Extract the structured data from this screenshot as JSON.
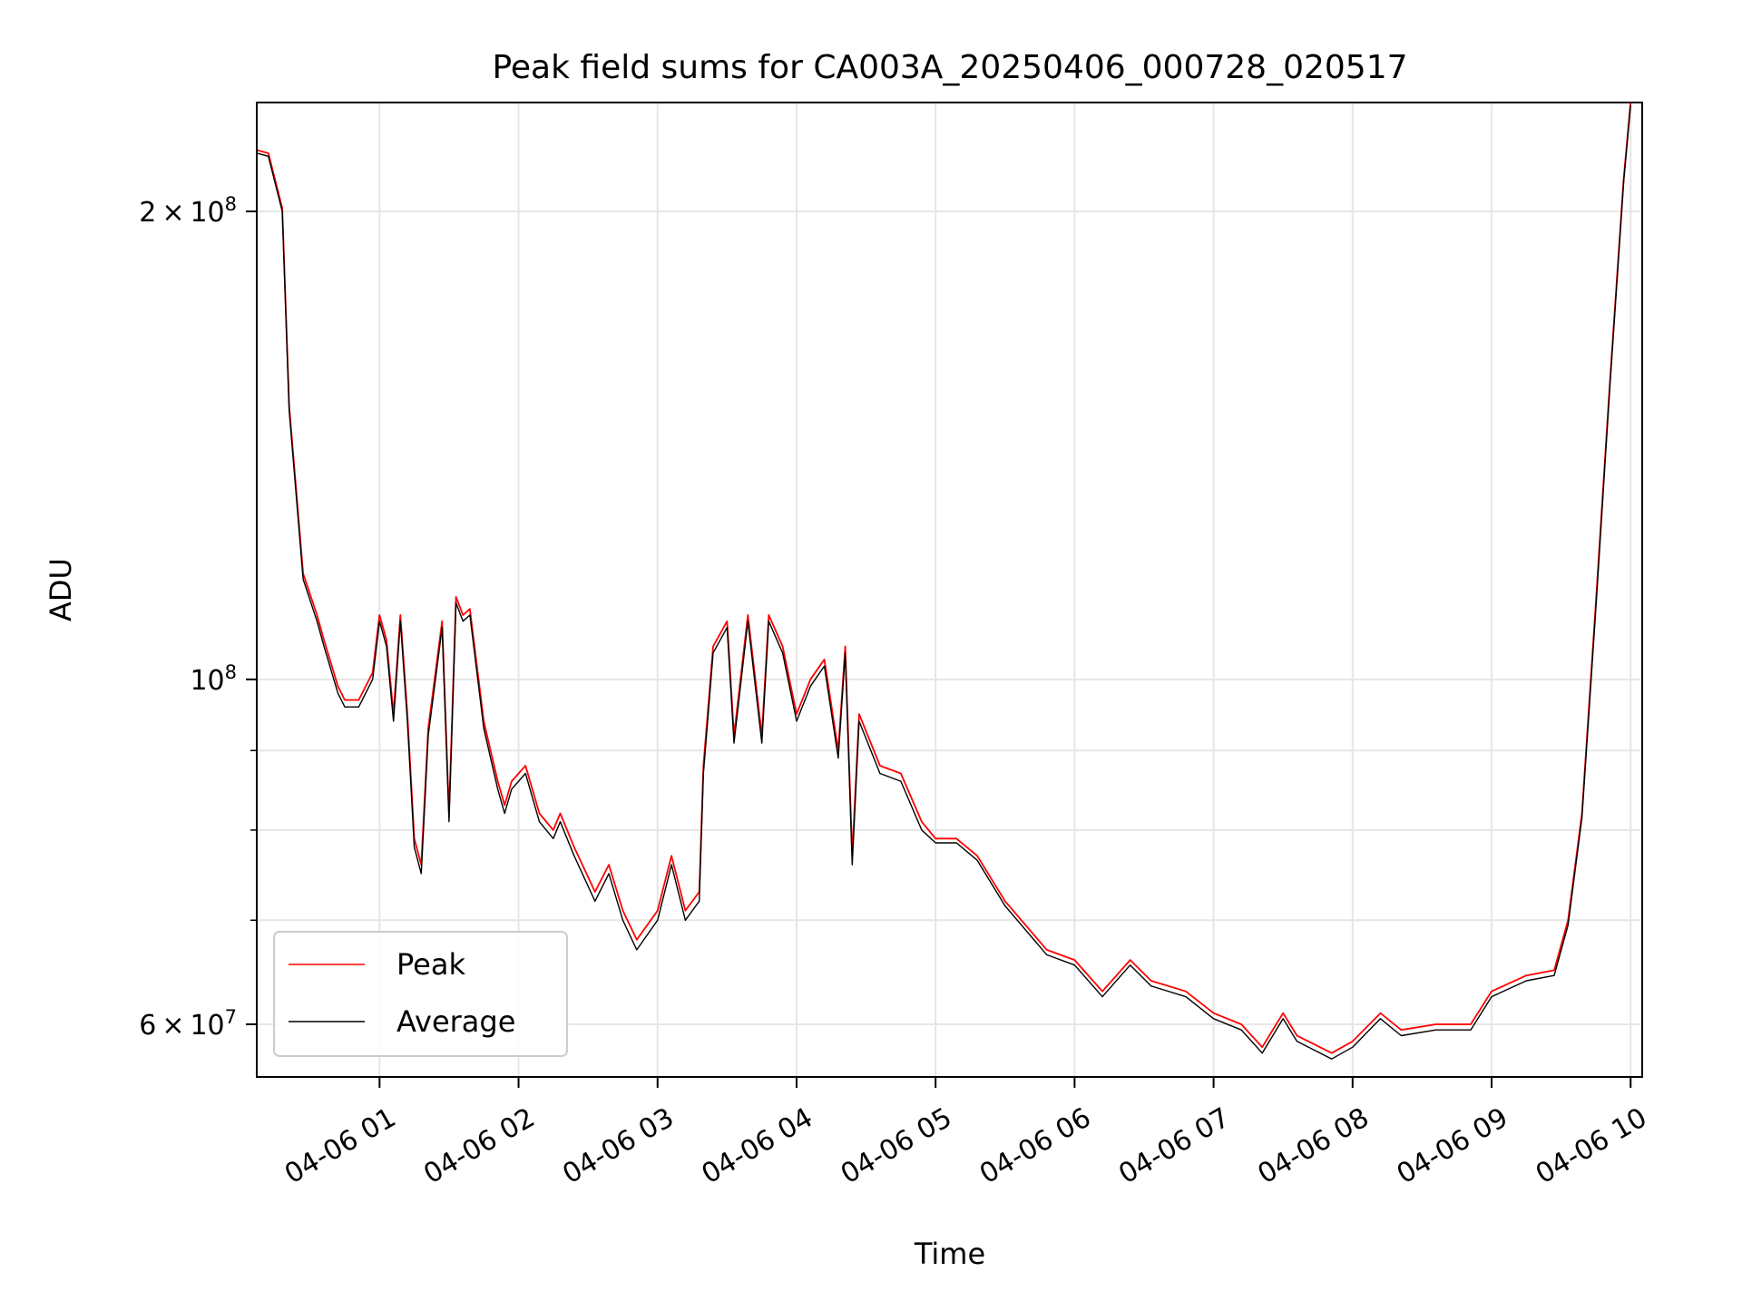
{
  "chart_data": {
    "type": "line",
    "title": "Peak field sums for CA003A_20250406_000728_020517",
    "xlabel": "Time",
    "ylabel": "ADU",
    "xlim": [
      "04-06 00:07",
      "04-06 10:05"
    ],
    "ylim": [
      55500000,
      235000000
    ],
    "yscale": "log",
    "grid": true,
    "legend_position": "lower-left",
    "x_ticks": [
      "04-06 01",
      "04-06 02",
      "04-06 03",
      "04-06 04",
      "04-06 05",
      "04-06 06",
      "04-06 07",
      "04-06 08",
      "04-06 09",
      "04-06 10"
    ],
    "y_ticks": [
      {
        "value": 60000000,
        "mantissa": "6",
        "exponent": "7"
      },
      {
        "value": 100000000,
        "mantissa": "",
        "exponent": "8"
      },
      {
        "value": 200000000,
        "mantissa": "2",
        "exponent": "8"
      }
    ],
    "y_minor_ticks": [
      70000000,
      80000000,
      90000000
    ],
    "x_hours": [
      0.12,
      0.2,
      0.3,
      0.35,
      0.45,
      0.55,
      0.6,
      0.7,
      0.75,
      0.85,
      0.95,
      1.0,
      1.05,
      1.1,
      1.15,
      1.2,
      1.25,
      1.3,
      1.35,
      1.45,
      1.5,
      1.55,
      1.6,
      1.65,
      1.75,
      1.85,
      1.9,
      1.95,
      2.05,
      2.15,
      2.25,
      2.3,
      2.4,
      2.55,
      2.65,
      2.75,
      2.85,
      3.0,
      3.1,
      3.2,
      3.3,
      3.33,
      3.4,
      3.5,
      3.55,
      3.65,
      3.75,
      3.8,
      3.9,
      4.0,
      4.1,
      4.2,
      4.3,
      4.35,
      4.4,
      4.45,
      4.6,
      4.75,
      4.9,
      5.0,
      5.15,
      5.3,
      5.5,
      5.8,
      6.0,
      6.2,
      6.4,
      6.55,
      6.8,
      7.0,
      7.2,
      7.35,
      7.5,
      7.6,
      7.85,
      8.0,
      8.2,
      8.35,
      8.6,
      8.85,
      9.0,
      9.25,
      9.45,
      9.55,
      9.65,
      9.75,
      9.85,
      9.95,
      10.0
    ],
    "series": [
      {
        "name": "Peak",
        "color": "#ff0000",
        "values": [
          219000000,
          218000000,
          201000000,
          150000000,
          117000000,
          110000000,
          106000000,
          99000000,
          97000000,
          97000000,
          101000000,
          110000000,
          106000000,
          95000000,
          110000000,
          95000000,
          79000000,
          76000000,
          93000000,
          109000000,
          82000000,
          113000000,
          110000000,
          111000000,
          94000000,
          86000000,
          83000000,
          86000000,
          88000000,
          82000000,
          80000000,
          82000000,
          78000000,
          73000000,
          76000000,
          71000000,
          68000000,
          71000000,
          77000000,
          71000000,
          73000000,
          88000000,
          105000000,
          109000000,
          92000000,
          110000000,
          92000000,
          110000000,
          105000000,
          95000000,
          100000000,
          103000000,
          90000000,
          105000000,
          77000000,
          95000000,
          88000000,
          87000000,
          81000000,
          79000000,
          79000000,
          77000000,
          72000000,
          67000000,
          66000000,
          63000000,
          66000000,
          64000000,
          63000000,
          61000000,
          60000000,
          58000000,
          61000000,
          59000000,
          57500000,
          58500000,
          61000000,
          59500000,
          60000000,
          60000000,
          63000000,
          64500000,
          65000000,
          70000000,
          82000000,
          112000000,
          155000000,
          210000000,
          235000000
        ]
      },
      {
        "name": "Average",
        "color": "#000000",
        "values": [
          218000000,
          217000000,
          200000000,
          149000000,
          116000000,
          109000000,
          105000000,
          98000000,
          96000000,
          96000000,
          100000000,
          109000000,
          105000000,
          94000000,
          109000000,
          94000000,
          78000000,
          75000000,
          92000000,
          108000000,
          81000000,
          112000000,
          109000000,
          110000000,
          93000000,
          85000000,
          82000000,
          85000000,
          87000000,
          81000000,
          79000000,
          81000000,
          77000000,
          72000000,
          75000000,
          70000000,
          67000000,
          70000000,
          76000000,
          70000000,
          72000000,
          87000000,
          104000000,
          108000000,
          91000000,
          109000000,
          91000000,
          109000000,
          104000000,
          94000000,
          99000000,
          102000000,
          89000000,
          104000000,
          76000000,
          94000000,
          87000000,
          86000000,
          80000000,
          78500000,
          78500000,
          76500000,
          71500000,
          66500000,
          65500000,
          62500000,
          65500000,
          63500000,
          62500000,
          60500000,
          59500000,
          57500000,
          60500000,
          58500000,
          57000000,
          58000000,
          60500000,
          59000000,
          59500000,
          59500000,
          62500000,
          64000000,
          64500000,
          69500000,
          81500000,
          111000000,
          154000000,
          209000000,
          234000000
        ]
      }
    ]
  }
}
